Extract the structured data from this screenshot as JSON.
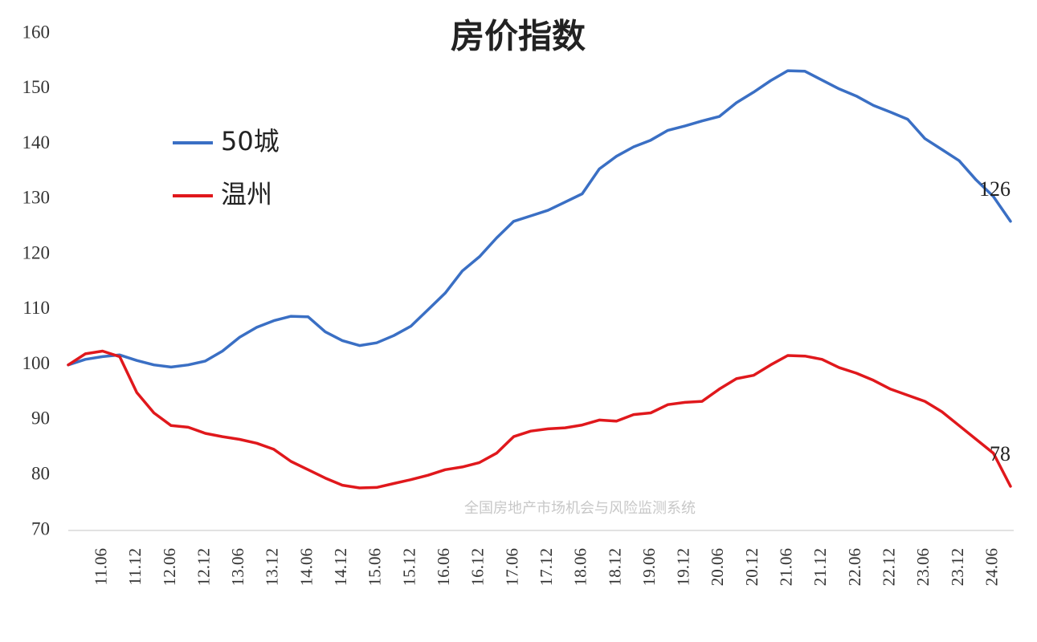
{
  "chart_data": {
    "type": "line",
    "title": "房价指数",
    "watermark": "全国房地产市场机会与风险监测系统",
    "categories": [
      null,
      null,
      "11.06",
      null,
      "11.12",
      null,
      "12.06",
      null,
      "12.12",
      null,
      "13.06",
      null,
      "13.12",
      null,
      "14.06",
      null,
      "14.12",
      null,
      "15.06",
      null,
      "15.12",
      null,
      "16.06",
      null,
      "16.12",
      null,
      "17.06",
      null,
      "17.12",
      null,
      "18.06",
      null,
      "18.12",
      null,
      "19.06",
      null,
      "19.12",
      null,
      "20.06",
      null,
      "20.12",
      null,
      "21.06",
      null,
      "21.12",
      null,
      "22.06",
      null,
      "22.12",
      null,
      "23.06",
      null,
      "23.12",
      null,
      "24.06",
      null
    ],
    "series": [
      {
        "name": "50城",
        "color": "#3a6fc4",
        "values": [
          100,
          101,
          101.5,
          101.8,
          100.8,
          100,
          99.6,
          100,
          100.7,
          102.5,
          105,
          106.8,
          108,
          108.8,
          108.7,
          106,
          104.4,
          103.5,
          104,
          105.3,
          107,
          110,
          113,
          117,
          119.6,
          123,
          126,
          127,
          128,
          129.5,
          131,
          135.5,
          137.8,
          139.5,
          140.7,
          142.5,
          143.3,
          144.2,
          145,
          147.5,
          149.4,
          151.5,
          153.3,
          153.2,
          151.6,
          150,
          148.7,
          147,
          145.8,
          144.5,
          141,
          139,
          137,
          133.5,
          130.5,
          126
        ]
      },
      {
        "name": "温州",
        "color": "#e0181c",
        "values": [
          100,
          102,
          102.5,
          101.5,
          95,
          91.3,
          89,
          88.7,
          87.6,
          87,
          86.5,
          85.8,
          84.7,
          82.5,
          81,
          79.5,
          78.2,
          77.7,
          77.8,
          78.5,
          79.2,
          80,
          81,
          81.5,
          82.3,
          84,
          87,
          88,
          88.4,
          88.6,
          89.1,
          90,
          89.8,
          91,
          91.3,
          92.8,
          93.2,
          93.4,
          95.6,
          97.5,
          98.1,
          100,
          101.7,
          101.6,
          101,
          99.5,
          98.5,
          97.2,
          95.6,
          94.5,
          93.4,
          91.5,
          89,
          86.5,
          84,
          78
        ]
      }
    ],
    "ylim": [
      70,
      160
    ],
    "yticks": [
      70,
      80,
      90,
      100,
      110,
      120,
      130,
      140,
      150,
      160
    ],
    "grid": false,
    "legend": "upper left",
    "end_labels": true
  }
}
